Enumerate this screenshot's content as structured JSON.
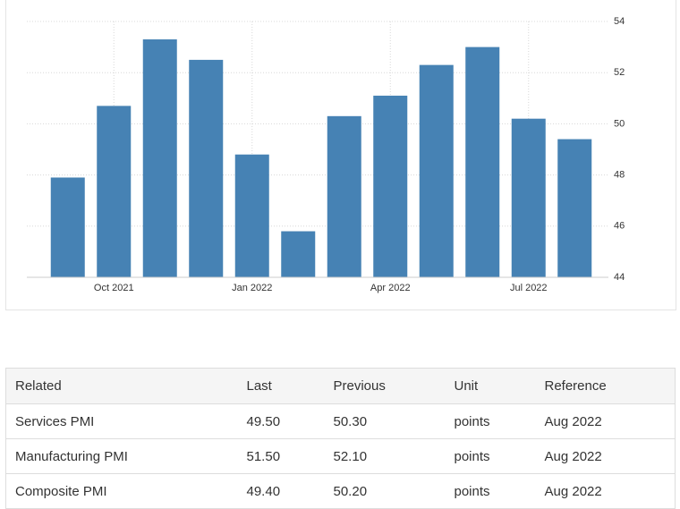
{
  "chart_data": {
    "type": "bar",
    "categories": [
      null,
      "Oct 2021",
      null,
      null,
      "Jan 2022",
      null,
      null,
      "Apr 2022",
      null,
      null,
      "Jul 2022",
      null
    ],
    "values": [
      47.9,
      50.7,
      53.3,
      52.5,
      48.8,
      45.8,
      50.3,
      51.1,
      52.3,
      53.0,
      50.2,
      49.4
    ],
    "color": "#4682b4",
    "ylim": [
      44,
      54
    ],
    "yticks": [
      44,
      46,
      48,
      50,
      52,
      54
    ],
    "grid": true
  },
  "table": {
    "header": [
      "Related",
      "Last",
      "Previous",
      "Unit",
      "Reference"
    ],
    "rows": [
      [
        "Services PMI",
        "49.50",
        "50.30",
        "points",
        "Aug 2022"
      ],
      [
        "Manufacturing PMI",
        "51.50",
        "52.10",
        "points",
        "Aug 2022"
      ],
      [
        "Composite PMI",
        "49.40",
        "50.20",
        "points",
        "Aug 2022"
      ]
    ]
  }
}
